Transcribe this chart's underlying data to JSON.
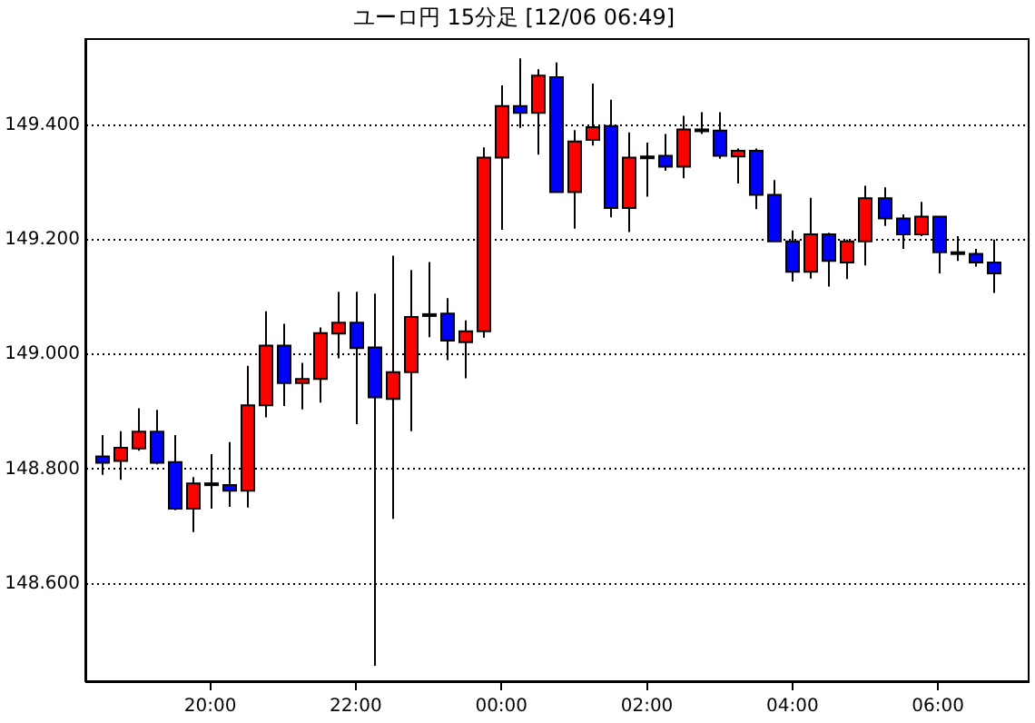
{
  "chart_data": {
    "type": "candlestick",
    "title": "ユーロ円 15分足 [12/06 06:49]",
    "x": [
      "--12-05T18:30",
      "--12-05T18:45",
      "--12-05T19:00",
      "--12-05T19:15",
      "--12-05T19:30",
      "--12-05T19:45",
      "--12-05T20:00",
      "--12-05T20:15",
      "--12-05T20:30",
      "--12-05T20:45",
      "--12-05T21:00",
      "--12-05T21:15",
      "--12-05T21:30",
      "--12-05T21:45",
      "--12-05T22:00",
      "--12-05T22:15",
      "--12-05T22:30",
      "--12-05T22:45",
      "--12-05T23:00",
      "--12-05T23:15",
      "--12-05T23:30",
      "--12-05T23:45",
      "--12-06T00:00",
      "--12-06T00:15",
      "--12-06T00:30",
      "--12-06T00:45",
      "--12-06T01:00",
      "--12-06T01:15",
      "--12-06T01:30",
      "--12-06T01:45",
      "--12-06T02:00",
      "--12-06T02:15",
      "--12-06T02:30",
      "--12-06T02:45",
      "--12-06T03:00",
      "--12-06T03:15",
      "--12-06T03:30",
      "--12-06T03:45",
      "--12-06T04:00",
      "--12-06T04:15",
      "--12-06T04:30",
      "--12-06T04:45",
      "--12-06T05:00",
      "--12-06T05:15",
      "--12-06T05:30",
      "--12-06T05:45",
      "--12-06T06:00",
      "--12-06T06:15",
      "--12-06T06:30",
      "--12-06T06:45"
    ],
    "ohlc": [
      [
        148.822,
        148.859,
        148.79,
        148.811
      ],
      [
        148.814,
        148.866,
        148.781,
        148.837
      ],
      [
        148.836,
        148.906,
        148.832,
        148.865
      ],
      [
        148.865,
        148.903,
        148.808,
        148.811
      ],
      [
        148.812,
        148.859,
        148.728,
        148.731
      ],
      [
        148.731,
        148.786,
        148.69,
        148.775
      ],
      [
        148.773,
        148.826,
        148.731,
        148.775
      ],
      [
        148.772,
        148.847,
        148.734,
        148.762
      ],
      [
        148.762,
        148.98,
        148.733,
        148.911
      ],
      [
        148.911,
        149.075,
        148.89,
        149.015
      ],
      [
        149.015,
        149.053,
        148.91,
        148.95
      ],
      [
        148.95,
        148.985,
        148.904,
        148.957
      ],
      [
        148.957,
        149.047,
        148.916,
        149.037
      ],
      [
        149.036,
        149.109,
        148.993,
        149.055
      ],
      [
        149.055,
        149.109,
        148.878,
        149.011
      ],
      [
        149.012,
        149.106,
        148.457,
        148.925
      ],
      [
        148.922,
        149.172,
        148.713,
        148.969
      ],
      [
        148.969,
        149.147,
        148.866,
        149.065
      ],
      [
        149.068,
        149.161,
        149.03,
        149.07
      ],
      [
        149.071,
        149.098,
        148.99,
        149.024
      ],
      [
        149.021,
        149.059,
        148.958,
        149.04
      ],
      [
        149.04,
        149.361,
        149.029,
        149.343
      ],
      [
        149.343,
        149.469,
        149.217,
        149.433
      ],
      [
        149.433,
        149.516,
        149.395,
        149.421
      ],
      [
        149.421,
        149.497,
        149.348,
        149.486
      ],
      [
        149.483,
        149.509,
        149.283,
        149.283
      ],
      [
        149.283,
        149.391,
        149.219,
        149.371
      ],
      [
        149.374,
        149.472,
        149.364,
        149.396
      ],
      [
        149.398,
        149.444,
        149.239,
        149.255
      ],
      [
        149.255,
        149.387,
        149.213,
        149.343
      ],
      [
        149.343,
        149.369,
        149.275,
        149.345
      ],
      [
        149.346,
        149.384,
        149.32,
        149.327
      ],
      [
        149.327,
        149.416,
        149.307,
        149.392
      ],
      [
        149.392,
        149.422,
        149.384,
        149.39
      ],
      [
        149.39,
        149.422,
        149.341,
        149.346
      ],
      [
        149.345,
        149.359,
        149.298,
        149.355
      ],
      [
        149.355,
        149.359,
        149.253,
        149.278
      ],
      [
        149.278,
        149.304,
        149.197,
        149.197
      ],
      [
        149.197,
        149.216,
        149.127,
        149.144
      ],
      [
        149.144,
        149.273,
        149.132,
        149.209
      ],
      [
        149.209,
        149.212,
        149.118,
        149.163
      ],
      [
        149.16,
        149.2,
        149.131,
        149.197
      ],
      [
        149.197,
        149.294,
        149.155,
        149.272
      ],
      [
        149.272,
        149.291,
        149.224,
        149.237
      ],
      [
        149.237,
        149.244,
        149.184,
        149.209
      ],
      [
        149.209,
        149.266,
        149.206,
        149.24
      ],
      [
        149.24,
        149.24,
        149.141,
        149.178
      ],
      [
        149.178,
        149.206,
        149.163,
        149.176
      ],
      [
        149.175,
        149.184,
        149.153,
        149.16
      ],
      [
        149.16,
        149.2,
        149.107,
        149.141
      ]
    ],
    "colors": [
      "#0000ff",
      "#ff0000",
      "#ff0000",
      "#0000ff",
      "#0000ff",
      "#ff0000",
      "#ff0000",
      "#0000ff",
      "#ff0000",
      "#ff0000",
      "#0000ff",
      "#ff0000",
      "#ff0000",
      "#ff0000",
      "#0000ff",
      "#0000ff",
      "#ff0000",
      "#ff0000",
      "#ff0000",
      "#0000ff",
      "#ff0000",
      "#ff0000",
      "#ff0000",
      "#0000ff",
      "#ff0000",
      "#0000ff",
      "#ff0000",
      "#ff0000",
      "#0000ff",
      "#ff0000",
      "#ff0000",
      "#0000ff",
      "#ff0000",
      "#0000ff",
      "#0000ff",
      "#ff0000",
      "#0000ff",
      "#0000ff",
      "#0000ff",
      "#ff0000",
      "#0000ff",
      "#ff0000",
      "#ff0000",
      "#0000ff",
      "#0000ff",
      "#ff0000",
      "#0000ff",
      "#0000ff",
      "#0000ff",
      "#0000ff"
    ],
    "xlim": [
      "--12-05T18:17",
      "--12-06T07:14"
    ],
    "xticks": [
      {
        "value": "--12-05T20:00",
        "label": "20:00"
      },
      {
        "value": "--12-05T22:00",
        "label": "22:00"
      },
      {
        "value": "--12-06T00:00",
        "label": "00:00"
      },
      {
        "value": "--12-06T02:00",
        "label": "02:00"
      },
      {
        "value": "--12-06T04:00",
        "label": "04:00"
      },
      {
        "value": "--12-06T06:00",
        "label": "06:00"
      }
    ],
    "ylim": [
      148.43,
      149.55
    ],
    "yticks": [
      {
        "value": 148.6,
        "label": "148.600"
      },
      {
        "value": 148.8,
        "label": "148.800"
      },
      {
        "value": 149,
        "label": "149.000"
      },
      {
        "value": 149.2,
        "label": "149.200"
      },
      {
        "value": 149.4,
        "label": "149.400"
      }
    ],
    "grid": "y"
  }
}
